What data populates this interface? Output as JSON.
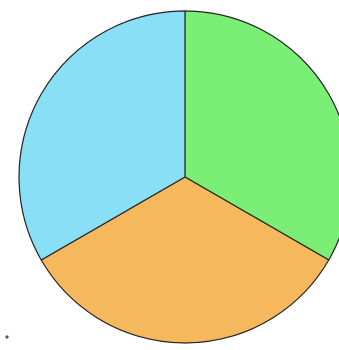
{
  "chart_data": {
    "type": "pie",
    "title": "",
    "categories": [
      "",
      "",
      ""
    ],
    "values": [
      1,
      1,
      1
    ],
    "colors": [
      "#7bee75",
      "#f6b85c",
      "#89dff5"
    ],
    "start_angle_deg": 0,
    "direction": "clockwise",
    "legend": "none",
    "data_labels": "none"
  }
}
